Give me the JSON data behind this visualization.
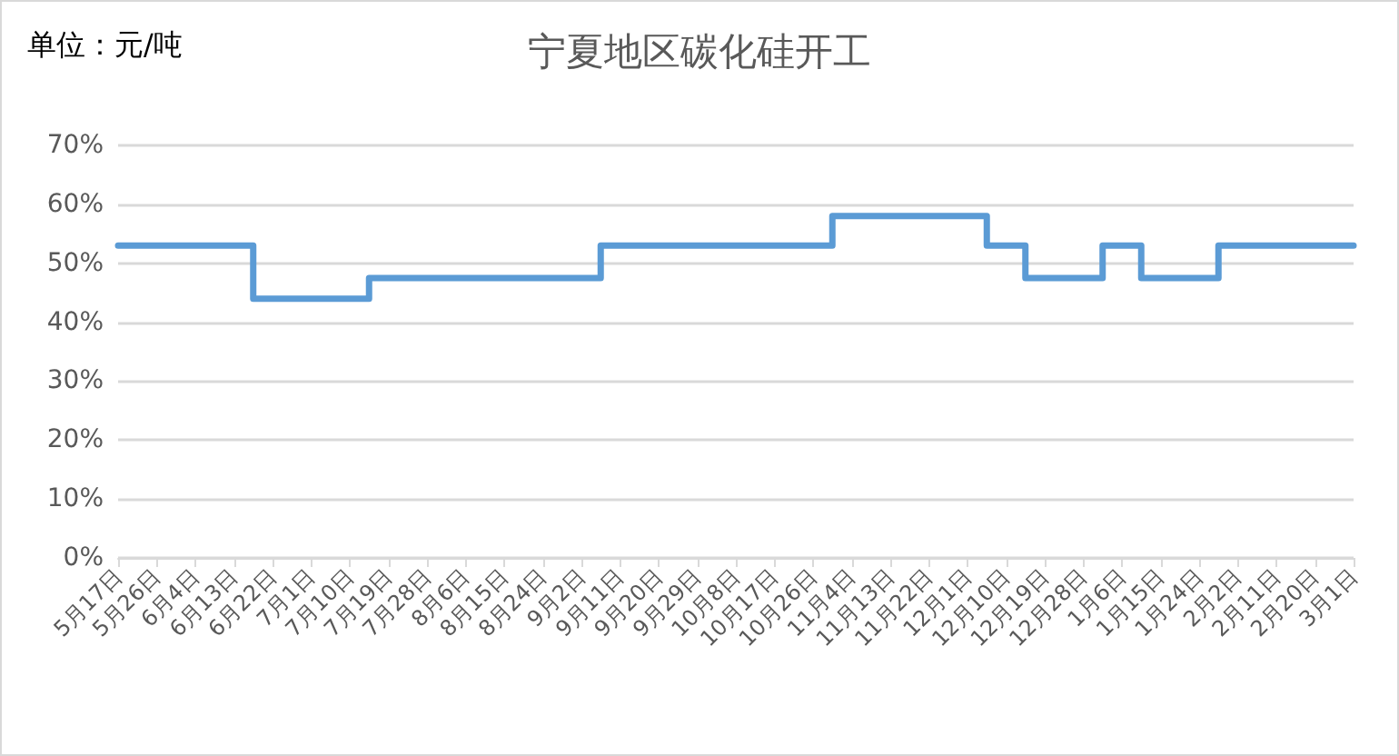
{
  "chart_data": {
    "type": "step",
    "title": "宁夏地区碳化硅开工",
    "annotations": [
      "单位：元/吨"
    ],
    "categories": [
      "5月17日",
      "5月26日",
      "6月4日",
      "6月13日",
      "6月22日",
      "7月1日",
      "7月10日",
      "7月19日",
      "7月28日",
      "8月6日",
      "8月15日",
      "8月24日",
      "9月2日",
      "9月11日",
      "9月20日",
      "9月29日",
      "10月8日",
      "10月17日",
      "10月26日",
      "11月4日",
      "11月13日",
      "11月22日",
      "12月1日",
      "12月10日",
      "12月19日",
      "12月28日",
      "1月6日",
      "1月15日",
      "1月24日",
      "2月2日",
      "2月11日",
      "2月20日",
      "3月1日"
    ],
    "series": [
      {
        "color": "#5b9bd5",
        "values": [
          53,
          53,
          53,
          53,
          44,
          44,
          44,
          47.5,
          47.5,
          47.5,
          47.5,
          47.5,
          47.5,
          53,
          53,
          53,
          53,
          53,
          53,
          58,
          58,
          58,
          58,
          53,
          47.5,
          47.5,
          53,
          47.5,
          47.5,
          53,
          53,
          53,
          53
        ]
      }
    ],
    "ylim": [
      0,
      70
    ],
    "yticks": [
      {
        "value": 0,
        "label": "0%"
      },
      {
        "value": 10,
        "label": "10%"
      },
      {
        "value": 20,
        "label": "20%"
      },
      {
        "value": 30,
        "label": "30%"
      },
      {
        "value": 40,
        "label": "40%"
      },
      {
        "value": 50,
        "label": "50%"
      },
      {
        "value": 60,
        "label": "60%"
      },
      {
        "value": 70,
        "label": "70%"
      }
    ],
    "grid": "y",
    "marker": "none",
    "line_style": "solid"
  }
}
